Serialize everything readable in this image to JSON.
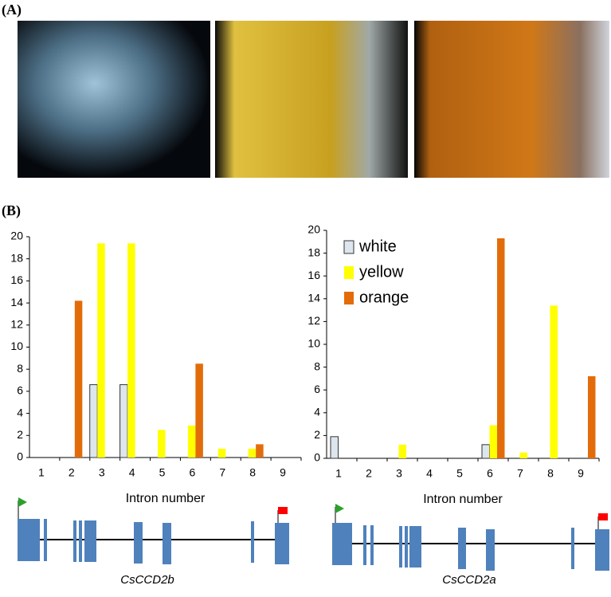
{
  "panel_labels": [
    "(A)",
    "(B)"
  ],
  "gene_labels": [
    "CsCCD2b",
    "CsCCD2a"
  ],
  "chart_data": [
    {
      "type": "bar",
      "xlabel": "Intron number",
      "categories": [
        "1",
        "2",
        "3",
        "4",
        "5",
        "6",
        "7",
        "8",
        "9"
      ],
      "series": [
        {
          "name": "white",
          "color": "#dde6ee",
          "values": [
            0,
            0,
            6.6,
            6.6,
            0,
            0,
            0,
            0,
            0
          ]
        },
        {
          "name": "yellow",
          "color": "#ffff00",
          "values": [
            0,
            0,
            19.4,
            19.4,
            2.5,
            2.9,
            0.8,
            0.8,
            0
          ]
        },
        {
          "name": "orange",
          "color": "#e36c0a",
          "values": [
            0,
            14.2,
            0,
            0,
            0,
            8.5,
            0,
            1.2,
            0
          ]
        }
      ],
      "ylim": [
        0,
        20
      ],
      "yticks": [
        0,
        2,
        4,
        6,
        8,
        10,
        12,
        14,
        16,
        18,
        20
      ],
      "legend": false
    },
    {
      "type": "bar",
      "xlabel": "Intron number",
      "categories": [
        "1",
        "2",
        "3",
        "4",
        "5",
        "6",
        "7",
        "8",
        "9"
      ],
      "series": [
        {
          "name": "white",
          "color": "#dde6ee",
          "values": [
            1.9,
            0,
            0,
            0,
            0,
            1.2,
            0,
            0,
            0
          ]
        },
        {
          "name": "yellow",
          "color": "#ffff00",
          "values": [
            0,
            0,
            1.2,
            0,
            0,
            2.9,
            0.5,
            13.4,
            0
          ]
        },
        {
          "name": "orange",
          "color": "#e36c0a",
          "values": [
            0,
            0,
            0,
            0,
            0,
            19.3,
            0,
            0,
            7.2
          ]
        }
      ],
      "ylim": [
        0,
        20
      ],
      "yticks": [
        0,
        2,
        4,
        6,
        8,
        10,
        12,
        14,
        16,
        18,
        20
      ],
      "legend": "upper left"
    }
  ]
}
